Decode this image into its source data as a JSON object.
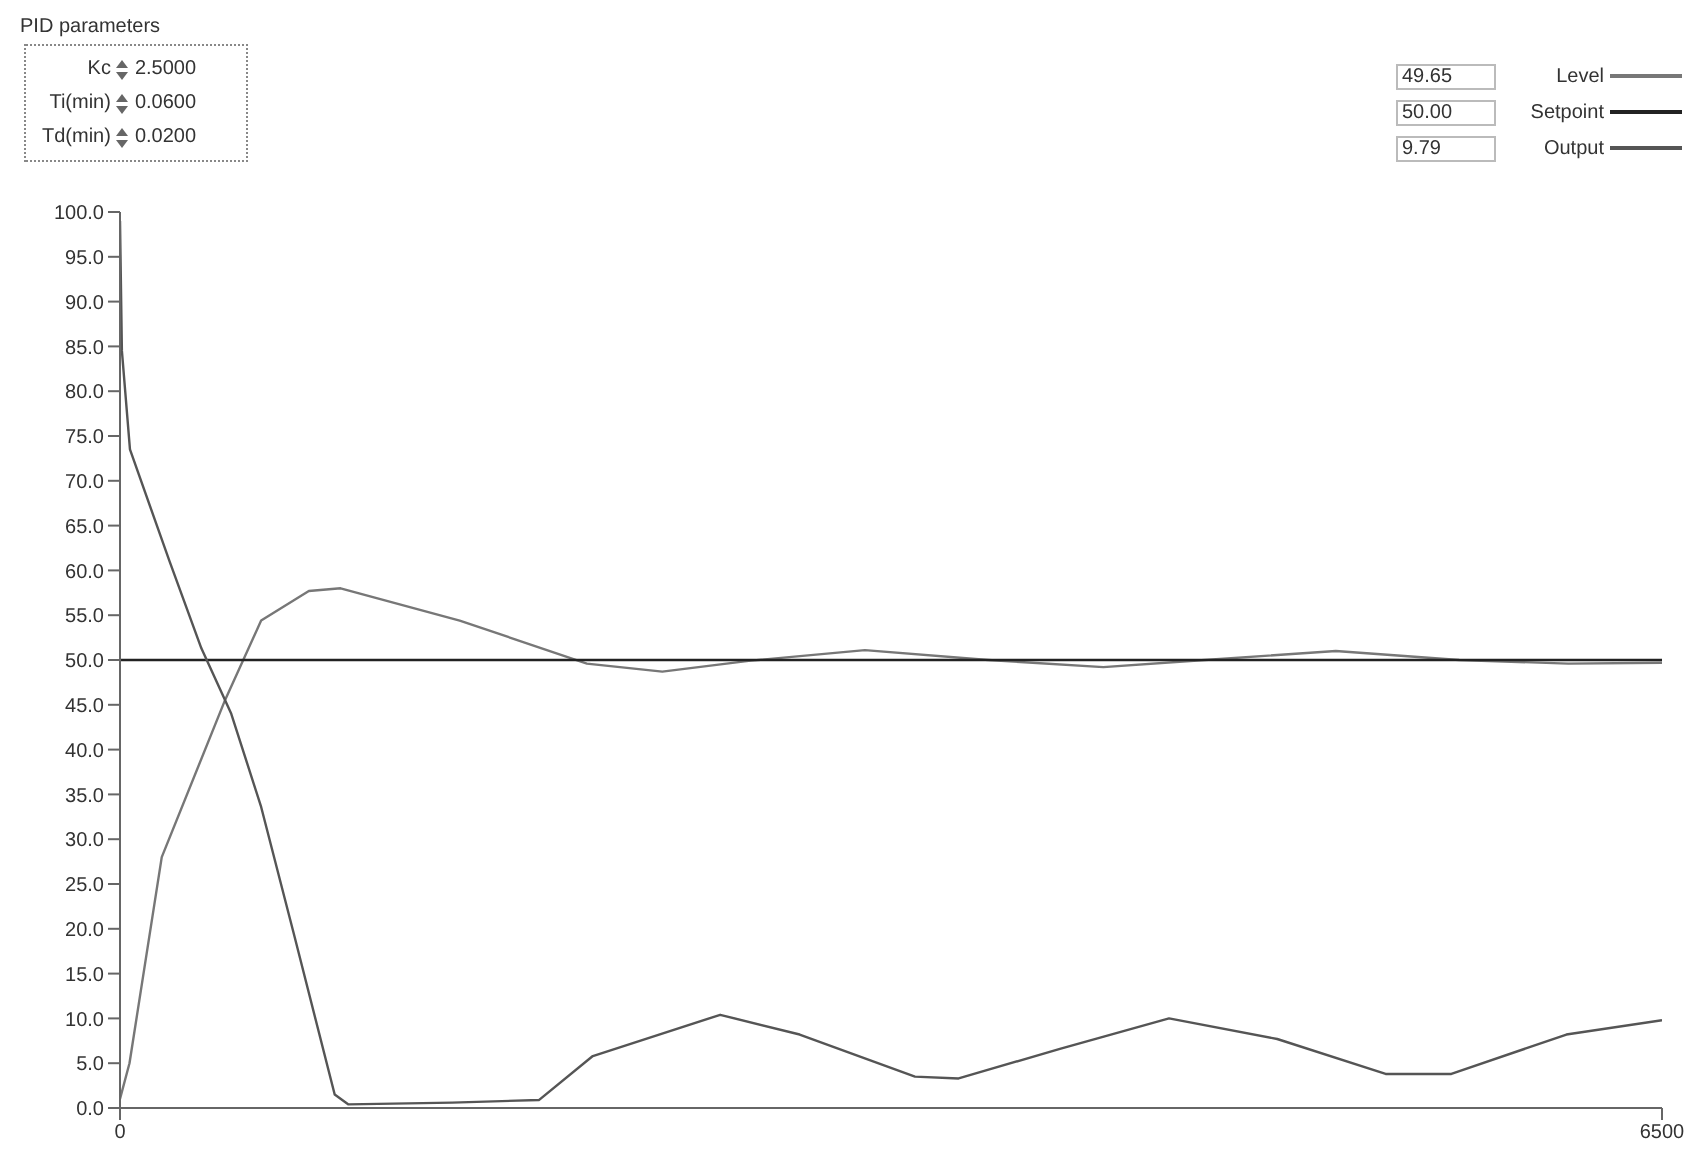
{
  "chart_data": {
    "type": "line",
    "title": "PID parameters",
    "annotations": [
      "Kc",
      "2.5000",
      "Ti(min)",
      "0.0600",
      "Td(min)",
      "0.0200",
      "49.65",
      "50.00",
      "9.79"
    ],
    "xlim": [
      0,
      6500
    ],
    "xticks": [
      0,
      6500
    ],
    "ylim": [
      0,
      100
    ],
    "yticks": [
      {
        "value": 0,
        "label": "0.0"
      },
      {
        "value": 5,
        "label": "5.0"
      },
      {
        "value": 10,
        "label": "10.0"
      },
      {
        "value": 15,
        "label": "15.0"
      },
      {
        "value": 20,
        "label": "20.0"
      },
      {
        "value": 25,
        "label": "25.0"
      },
      {
        "value": 30,
        "label": "30.0"
      },
      {
        "value": 35,
        "label": "35.0"
      },
      {
        "value": 40,
        "label": "40.0"
      },
      {
        "value": 45,
        "label": "45.0"
      },
      {
        "value": 50,
        "label": "50.0"
      },
      {
        "value": 55,
        "label": "55.0"
      },
      {
        "value": 60,
        "label": "60.0"
      },
      {
        "value": 65,
        "label": "65.0"
      },
      {
        "value": 70,
        "label": "70.0"
      },
      {
        "value": 75,
        "label": "75.0"
      },
      {
        "value": 80,
        "label": "80.0"
      },
      {
        "value": 85,
        "label": "85.0"
      },
      {
        "value": 90,
        "label": "90.0"
      },
      {
        "value": 95,
        "label": "95.0"
      },
      {
        "value": 100,
        "label": "100.0"
      }
    ],
    "grid": false,
    "legend": "top right",
    "marker": "none",
    "series": [
      {
        "name": "Level",
        "color": "#777777",
        "x": [
          0,
          40,
          176,
          444,
          595,
          796,
          930,
          1432,
          1968,
          2286,
          2650,
          3140,
          3660,
          4145,
          4573,
          5125,
          5645,
          6105,
          6500
        ],
        "values": [
          1,
          5,
          28,
          45.6,
          54.4,
          57.7,
          58,
          54.4,
          49.6,
          48.7,
          49.9,
          51.1,
          50,
          49.2,
          50,
          51,
          50,
          49.6,
          49.7
        ]
      },
      {
        "name": "Setpoint",
        "color": "#222222",
        "x": [
          0,
          6500
        ],
        "values": [
          50,
          50
        ]
      },
      {
        "name": "Output",
        "color": "#555555",
        "x": [
          0,
          8,
          42,
          209,
          343,
          469,
          595,
          737,
          905,
          963,
          1400,
          1767,
          1993,
          2530,
          2865,
          3351,
          3535,
          3962,
          4422,
          4878,
          5335,
          5612,
          6097,
          6500
        ],
        "values": [
          99,
          84.5,
          73.5,
          61,
          51.3,
          44,
          33.6,
          19,
          1.5,
          0.4,
          0.6,
          0.9,
          5.8,
          10.4,
          8.2,
          3.5,
          3.3,
          6.6,
          10,
          7.7,
          3.8,
          3.8,
          8.2,
          9.8
        ]
      }
    ]
  }
}
